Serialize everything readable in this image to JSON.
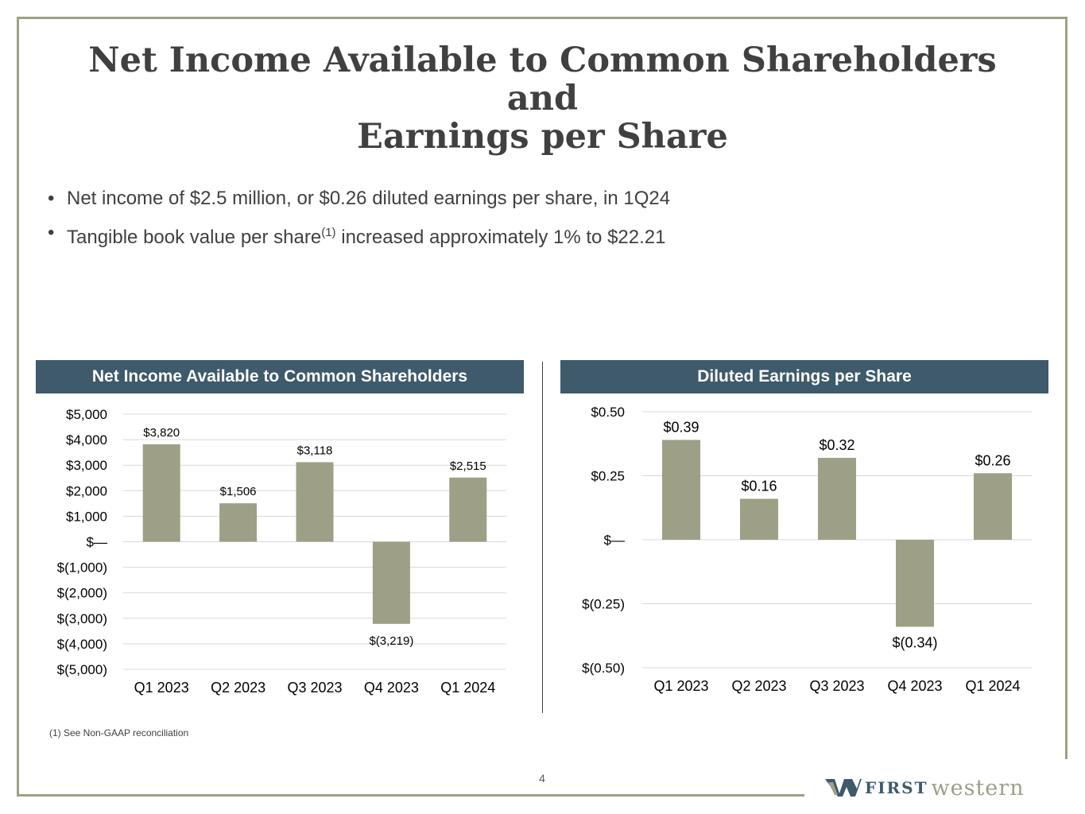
{
  "title_line1": "Net Income Available to Common Shareholders and",
  "title_line2": "Earnings per Share",
  "bullets": [
    {
      "dot": "•",
      "text": "Net income of $2.5 million, or $0.26 diluted earnings per share, in 1Q24"
    },
    {
      "dot": "•",
      "text_a": "Tangible book value per share",
      "sup": "(1)",
      "text_b": " increased approximately 1% to $22.21"
    }
  ],
  "colors": {
    "bar": "#9da086",
    "header": "#3e5a6b",
    "frame": "#9da086",
    "grid": "#d9d9d9"
  },
  "chart_data": [
    {
      "type": "bar",
      "title": "Net Income Available to Common Shareholders",
      "categories": [
        "Q1 2023",
        "Q2 2023",
        "Q3 2023",
        "Q4 2023",
        "Q1 2024"
      ],
      "values": [
        3820,
        1506,
        3118,
        -3219,
        2515
      ],
      "value_labels": [
        "$3,820",
        "$1,506",
        "$3,118",
        "$(3,219)",
        "$2,515"
      ],
      "ylim": [
        -5000,
        5000
      ],
      "yticks": [
        5000,
        4000,
        3000,
        2000,
        1000,
        0,
        -1000,
        -2000,
        -3000,
        -4000,
        -5000
      ],
      "ytick_labels": [
        "$5,000",
        "$4,000",
        "$3,000",
        "$2,000",
        "$1,000",
        "$—",
        "$(1,000)",
        "$(2,000)",
        "$(3,000)",
        "$(4,000)",
        "$(5,000)"
      ],
      "grid": true
    },
    {
      "type": "bar",
      "title": "Diluted Earnings per Share",
      "categories": [
        "Q1 2023",
        "Q2 2023",
        "Q3 2023",
        "Q4 2023",
        "Q1 2024"
      ],
      "values": [
        0.39,
        0.16,
        0.32,
        -0.34,
        0.26
      ],
      "value_labels": [
        "$0.39",
        "$0.16",
        "$0.32",
        "$(0.34)",
        "$0.26"
      ],
      "ylim": [
        -0.5,
        0.5
      ],
      "yticks": [
        0.5,
        0.25,
        0,
        -0.25,
        -0.5
      ],
      "ytick_labels": [
        "$0.50",
        "$0.25",
        "$—",
        "$(0.25)",
        "$(0.50)"
      ],
      "grid": true
    }
  ],
  "footnote": "(1)  See Non-GAAP reconciliation",
  "page_number": "4",
  "logo": {
    "first": "FIRST",
    "western": "western"
  }
}
